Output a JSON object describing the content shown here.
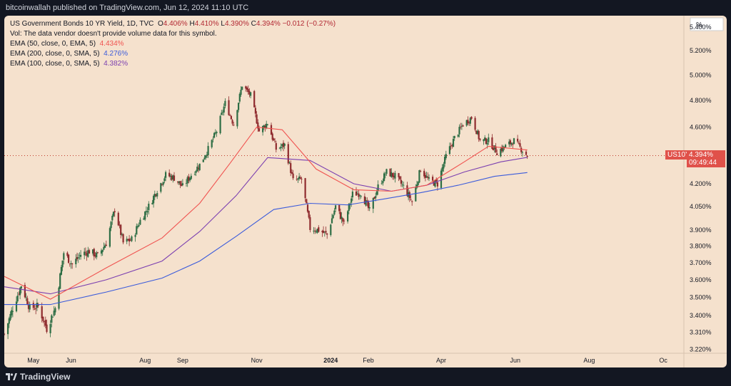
{
  "header": {
    "published": "bitcoinwallah published on TradingView.com, Jun 12, 2024 11:10 UTC"
  },
  "legend": {
    "symbol_line": "US Government Bonds 10 YR Yield, 1D, TVC",
    "ohlc": {
      "o_label": "O",
      "o": "4.406%",
      "h_label": "H",
      "h": "4.410%",
      "l_label": "L",
      "l": "4.390%",
      "c_label": "C",
      "c": "4.394%",
      "chg": "−0.012 (−0.27%)"
    },
    "vol": "Vol: The data vendor doesn't provide volume data for this symbol.",
    "ema50_label": "EMA (50, close, 0, EMA, 5)",
    "ema50_value": "4.434%",
    "ema200_label": "EMA (200, close, 0, SMA, 5)",
    "ema200_value": "4.276%",
    "ema100_label": "EMA (100, close, 0, SMA, 5)",
    "ema100_value": "4.382%"
  },
  "price_axis": {
    "unit": "%",
    "current_price": "4.394%",
    "countdown": "09:49:44",
    "symbol_tag": "US10Y"
  },
  "colors": {
    "background": "#f5e1cd",
    "up": "#2e6e45",
    "down": "#8f2b2e",
    "ema50": "#f05350",
    "ema200": "#3b5bdb",
    "ema100": "#7b3fb0",
    "axis_text": "#131722"
  },
  "footer": {
    "brand": "TradingView"
  },
  "chart_data": {
    "type": "candlestick",
    "y_scale": "log",
    "ylim": [
      3.2,
      5.5
    ],
    "y_ticks": [
      "5.400%",
      "5.200%",
      "5.000%",
      "4.800%",
      "4.600%",
      "4.400%",
      "4.200%",
      "4.050%",
      "3.900%",
      "3.800%",
      "3.700%",
      "3.600%",
      "3.500%",
      "3.400%",
      "3.310%",
      "3.220%"
    ],
    "x_ticks": [
      "May",
      "Jun",
      "Aug",
      "Sep",
      "Nov",
      "2024",
      "Feb",
      "Apr",
      "Jun",
      "Aug",
      "Oc"
    ],
    "x_tick_dates": [
      "2023-05-01",
      "2023-06-01",
      "2023-08-01",
      "2023-09-01",
      "2023-11-01",
      "2024-01-01",
      "2024-02-01",
      "2024-04-01",
      "2024-06-01",
      "2024-08-01",
      "2024-10-01"
    ],
    "x_range": [
      "2023-04-07",
      "2024-10-18"
    ],
    "close_path": [
      [
        "2023-04-07",
        3.3
      ],
      [
        "2023-04-14",
        3.44
      ],
      [
        "2023-04-21",
        3.57
      ],
      [
        "2023-04-28",
        3.44
      ],
      [
        "2023-05-05",
        3.45
      ],
      [
        "2023-05-12",
        3.33
      ],
      [
        "2023-05-19",
        3.44
      ],
      [
        "2023-05-26",
        3.76
      ],
      [
        "2023-06-02",
        3.69
      ],
      [
        "2023-06-09",
        3.75
      ],
      [
        "2023-06-16",
        3.77
      ],
      [
        "2023-06-23",
        3.74
      ],
      [
        "2023-06-30",
        3.82
      ],
      [
        "2023-07-07",
        4.03
      ],
      [
        "2023-07-14",
        3.82
      ],
      [
        "2023-07-21",
        3.84
      ],
      [
        "2023-07-28",
        3.96
      ],
      [
        "2023-08-04",
        4.05
      ],
      [
        "2023-08-11",
        4.16
      ],
      [
        "2023-08-18",
        4.26
      ],
      [
        "2023-08-25",
        4.24
      ],
      [
        "2023-09-01",
        4.18
      ],
      [
        "2023-09-08",
        4.26
      ],
      [
        "2023-09-15",
        4.33
      ],
      [
        "2023-09-22",
        4.44
      ],
      [
        "2023-09-29",
        4.57
      ],
      [
        "2023-10-06",
        4.78
      ],
      [
        "2023-10-13",
        4.62
      ],
      [
        "2023-10-20",
        4.92
      ],
      [
        "2023-10-27",
        4.84
      ],
      [
        "2023-11-03",
        4.57
      ],
      [
        "2023-11-10",
        4.63
      ],
      [
        "2023-11-17",
        4.44
      ],
      [
        "2023-11-24",
        4.47
      ],
      [
        "2023-12-01",
        4.22
      ],
      [
        "2023-12-08",
        4.23
      ],
      [
        "2023-12-15",
        3.91
      ],
      [
        "2023-12-22",
        3.9
      ],
      [
        "2023-12-29",
        3.87
      ],
      [
        "2024-01-05",
        4.05
      ],
      [
        "2024-01-12",
        3.94
      ],
      [
        "2024-01-19",
        4.13
      ],
      [
        "2024-01-26",
        4.14
      ],
      [
        "2024-02-02",
        4.02
      ],
      [
        "2024-02-09",
        4.18
      ],
      [
        "2024-02-16",
        4.28
      ],
      [
        "2024-02-23",
        4.25
      ],
      [
        "2024-03-01",
        4.18
      ],
      [
        "2024-03-08",
        4.08
      ],
      [
        "2024-03-15",
        4.3
      ],
      [
        "2024-03-22",
        4.22
      ],
      [
        "2024-03-29",
        4.2
      ],
      [
        "2024-04-05",
        4.39
      ],
      [
        "2024-04-12",
        4.52
      ],
      [
        "2024-04-19",
        4.62
      ],
      [
        "2024-04-26",
        4.67
      ],
      [
        "2024-05-03",
        4.5
      ],
      [
        "2024-05-10",
        4.5
      ],
      [
        "2024-05-17",
        4.42
      ],
      [
        "2024-05-24",
        4.46
      ],
      [
        "2024-05-31",
        4.5
      ],
      [
        "2024-06-07",
        4.43
      ],
      [
        "2024-06-11",
        4.394
      ]
    ],
    "ema50_path": [
      [
        "2023-04-07",
        3.62
      ],
      [
        "2023-05-15",
        3.49
      ],
      [
        "2023-06-30",
        3.67
      ],
      [
        "2023-08-15",
        3.85
      ],
      [
        "2023-09-15",
        4.07
      ],
      [
        "2023-10-10",
        4.34
      ],
      [
        "2023-11-01",
        4.6
      ],
      [
        "2023-11-22",
        4.58
      ],
      [
        "2023-12-20",
        4.3
      ],
      [
        "2024-01-20",
        4.16
      ],
      [
        "2024-02-20",
        4.15
      ],
      [
        "2024-03-20",
        4.19
      ],
      [
        "2024-04-20",
        4.35
      ],
      [
        "2024-05-10",
        4.46
      ],
      [
        "2024-06-11",
        4.434
      ]
    ],
    "ema100_path": [
      [
        "2023-04-07",
        3.56
      ],
      [
        "2023-05-15",
        3.52
      ],
      [
        "2023-06-30",
        3.6
      ],
      [
        "2023-08-15",
        3.71
      ],
      [
        "2023-09-15",
        3.89
      ],
      [
        "2023-10-15",
        4.12
      ],
      [
        "2023-11-10",
        4.38
      ],
      [
        "2023-12-15",
        4.36
      ],
      [
        "2024-01-20",
        4.2
      ],
      [
        "2024-02-20",
        4.15
      ],
      [
        "2024-03-20",
        4.19
      ],
      [
        "2024-04-20",
        4.28
      ],
      [
        "2024-05-20",
        4.35
      ],
      [
        "2024-06-11",
        4.382
      ]
    ],
    "ema200_path": [
      [
        "2023-04-07",
        3.46
      ],
      [
        "2023-05-15",
        3.46
      ],
      [
        "2023-06-30",
        3.53
      ],
      [
        "2023-08-15",
        3.61
      ],
      [
        "2023-09-15",
        3.71
      ],
      [
        "2023-10-15",
        3.86
      ],
      [
        "2023-11-15",
        4.03
      ],
      [
        "2023-12-15",
        4.07
      ],
      [
        "2024-01-15",
        4.06
      ],
      [
        "2024-02-15",
        4.1
      ],
      [
        "2024-03-15",
        4.14
      ],
      [
        "2024-04-15",
        4.19
      ],
      [
        "2024-05-15",
        4.25
      ],
      [
        "2024-06-11",
        4.276
      ]
    ]
  }
}
